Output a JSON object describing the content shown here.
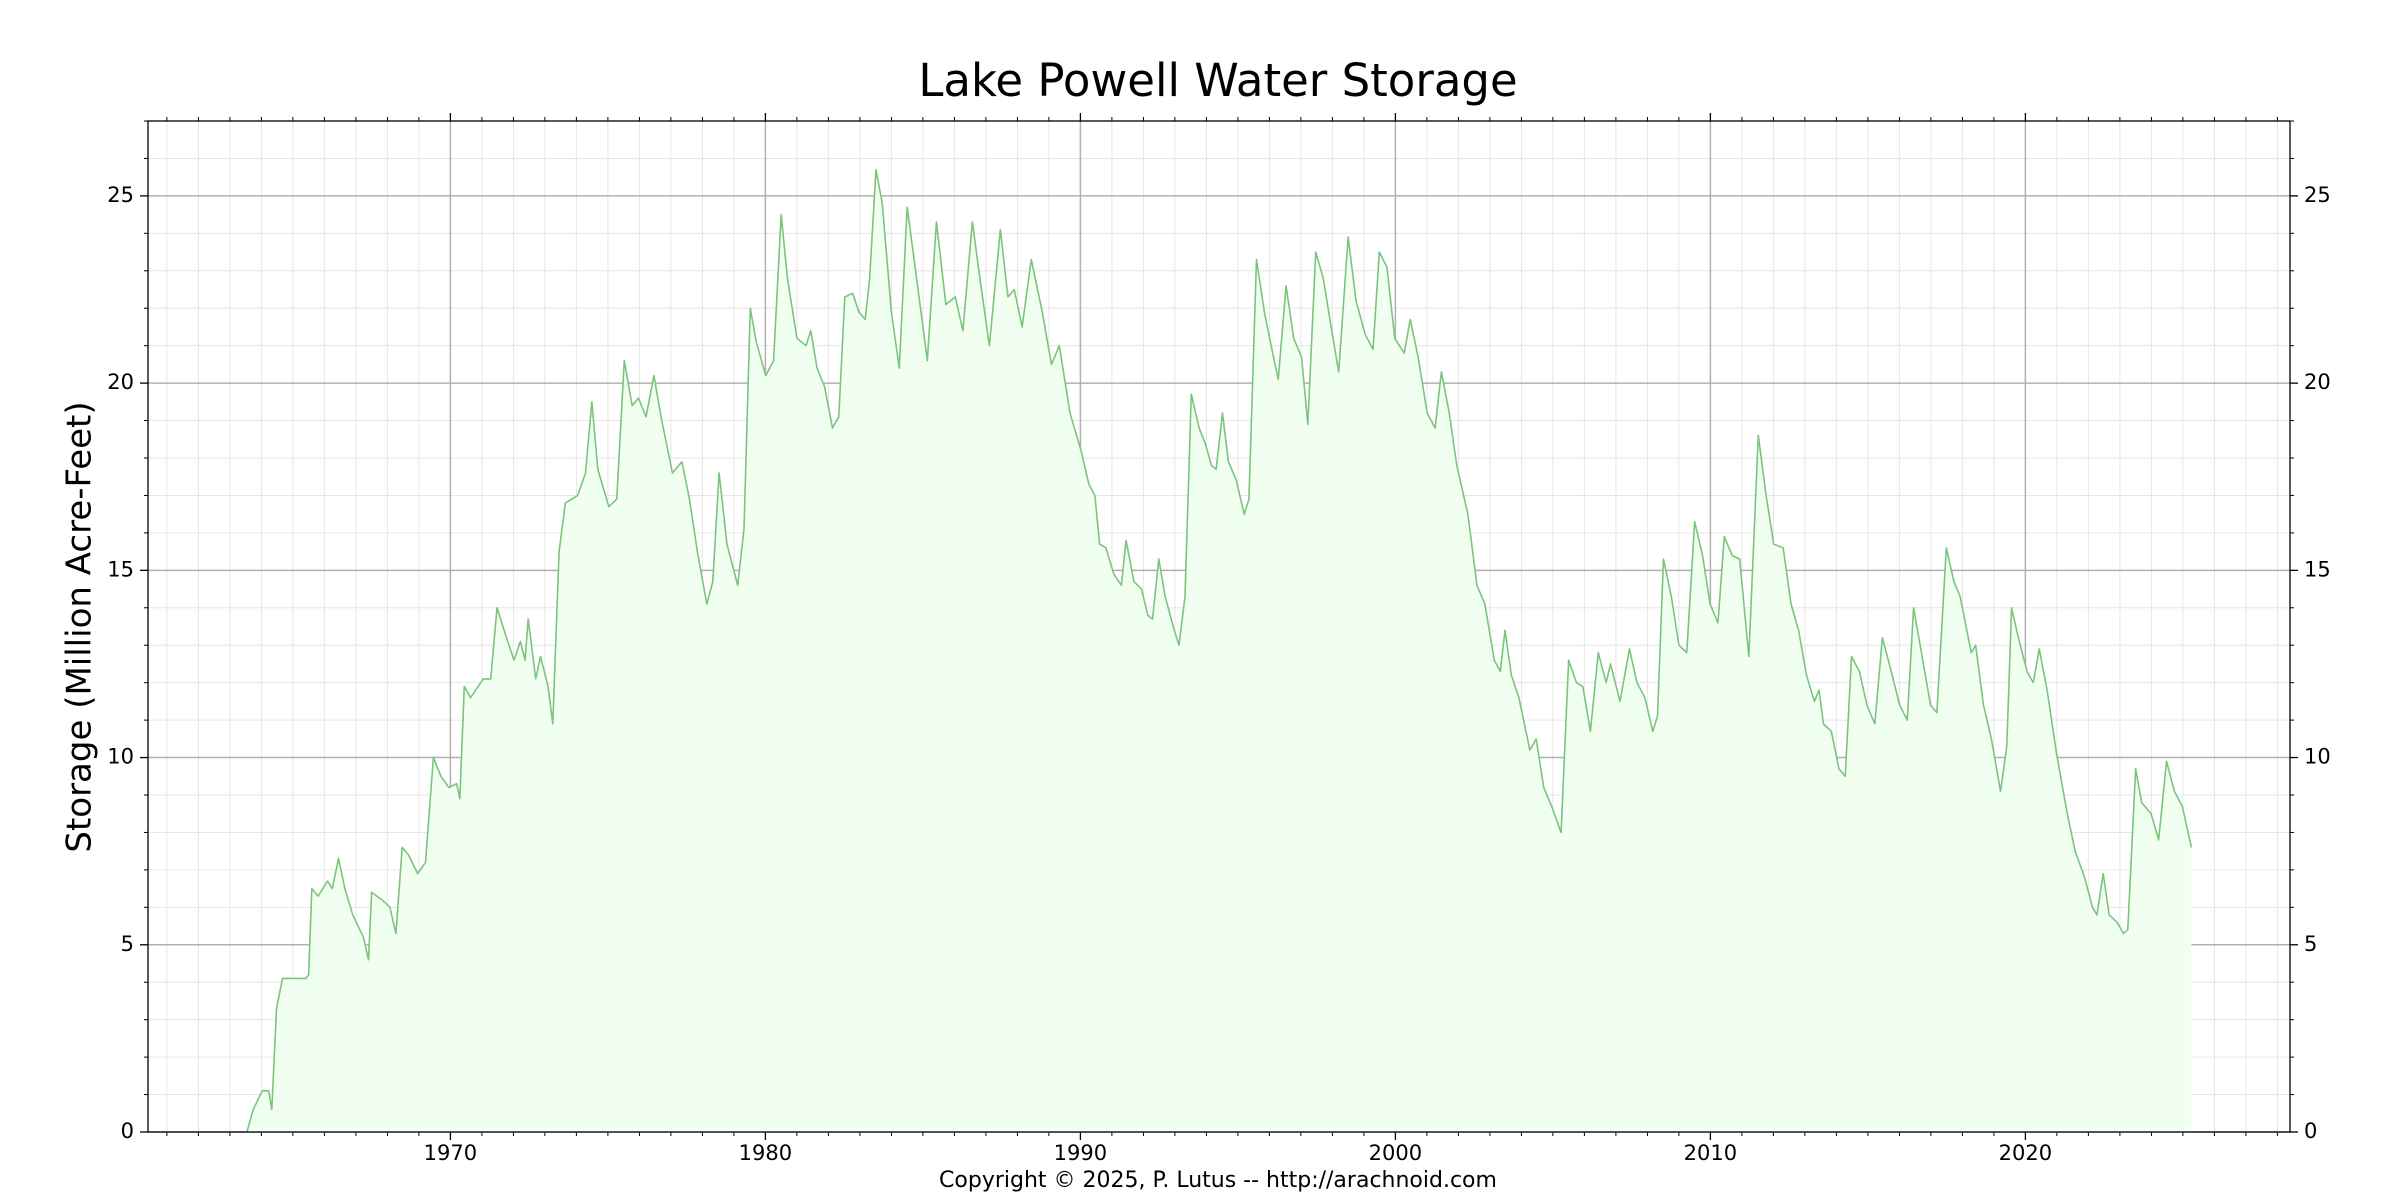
{
  "chart_data": {
    "type": "line",
    "title": "Lake Powell Water Storage",
    "ylabel": "Storage (Million Acre-Feet)",
    "annotation": "Copyright © 2025, P. Lutus -- http://arachnoid.com",
    "color": "#7cc47c",
    "fill_color": "#f0fff0",
    "fill": true,
    "grid": true,
    "minor_grid": true,
    "right_axis_labels": true,
    "xlim": [
      1960.4,
      2028.4
    ],
    "ylim": [
      0,
      27
    ],
    "xticks": [
      1970,
      1980,
      1990,
      2000,
      2010,
      2020
    ],
    "yticks": [
      0,
      5,
      10,
      15,
      20,
      25
    ],
    "xminorticks": [
      1961,
      1962,
      1963,
      1964,
      1965,
      1966,
      1967,
      1968,
      1969,
      1971,
      1972,
      1973,
      1974,
      1975,
      1976,
      1977,
      1978,
      1979,
      1981,
      1982,
      1983,
      1984,
      1985,
      1986,
      1987,
      1988,
      1989,
      1991,
      1992,
      1993,
      1994,
      1995,
      1996,
      1997,
      1998,
      1999,
      2001,
      2002,
      2003,
      2004,
      2005,
      2006,
      2007,
      2008,
      2009,
      2011,
      2012,
      2013,
      2014,
      2015,
      2016,
      2017,
      2018,
      2019,
      2021,
      2022,
      2023,
      2024,
      2025,
      2026,
      2027,
      2028
    ],
    "yminorticks": [
      1,
      2,
      3,
      4,
      6,
      7,
      8,
      9,
      11,
      12,
      13,
      14,
      16,
      17,
      18,
      19,
      21,
      22,
      23,
      24,
      26,
      27
    ],
    "x": [
      1963.54,
      1963.74,
      1964.03,
      1964.23,
      1964.33,
      1964.48,
      1964.67,
      1965.41,
      1965.5,
      1965.6,
      1965.8,
      1966.1,
      1966.25,
      1966.45,
      1966.65,
      1966.9,
      1967.24,
      1967.4,
      1967.5,
      1967.83,
      1968.08,
      1968.27,
      1968.47,
      1968.67,
      1968.96,
      1969.21,
      1969.46,
      1969.7,
      1969.95,
      1970.2,
      1970.3,
      1970.44,
      1970.64,
      1971.04,
      1971.28,
      1971.48,
      1971.78,
      1972.02,
      1972.22,
      1972.37,
      1972.47,
      1972.71,
      1972.86,
      1973.1,
      1973.25,
      1973.45,
      1973.65,
      1974.04,
      1974.29,
      1974.49,
      1974.68,
      1975.03,
      1975.28,
      1975.52,
      1975.77,
      1975.97,
      1976.21,
      1976.46,
      1976.71,
      1977.05,
      1977.35,
      1977.59,
      1977.84,
      1978.14,
      1978.33,
      1978.53,
      1978.78,
      1979.12,
      1979.32,
      1979.52,
      1979.71,
      1980.01,
      1980.26,
      1980.5,
      1980.7,
      1981.0,
      1981.29,
      1981.44,
      1981.64,
      1981.88,
      1982.13,
      1982.33,
      1982.52,
      1982.77,
      1982.97,
      1983.17,
      1983.31,
      1983.51,
      1983.71,
      1984.0,
      1984.25,
      1984.5,
      1984.69,
      1984.94,
      1985.14,
      1985.43,
      1985.73,
      1986.03,
      1986.27,
      1986.57,
      1986.81,
      1987.11,
      1987.46,
      1987.7,
      1987.9,
      1988.15,
      1988.44,
      1988.79,
      1989.08,
      1989.33,
      1989.67,
      1990.02,
      1990.27,
      1990.46,
      1990.61,
      1990.81,
      1991.06,
      1991.3,
      1991.45,
      1991.7,
      1991.94,
      1992.14,
      1992.29,
      1992.49,
      1992.69,
      1992.98,
      1993.13,
      1993.32,
      1993.52,
      1993.77,
      1993.96,
      1994.16,
      1994.31,
      1994.51,
      1994.7,
      1994.95,
      1995.2,
      1995.35,
      1995.59,
      1995.84,
      1996.08,
      1996.28,
      1996.53,
      1996.77,
      1997.02,
      1997.22,
      1997.47,
      1997.71,
      1997.96,
      1998.2,
      1998.5,
      1998.75,
      1999.04,
      1999.29,
      1999.49,
      1999.73,
      1999.98,
      2000.28,
      2000.47,
      2000.72,
      2001.01,
      2001.26,
      2001.46,
      2001.71,
      2001.95,
      2002.3,
      2002.59,
      2002.84,
      2003.14,
      2003.33,
      2003.48,
      2003.68,
      2003.92,
      2004.27,
      2004.47,
      2004.71,
      2004.96,
      2005.26,
      2005.5,
      2005.75,
      2005.95,
      2006.19,
      2006.44,
      2006.69,
      2006.83,
      2007.13,
      2007.43,
      2007.67,
      2007.92,
      2008.17,
      2008.32,
      2008.51,
      2008.76,
      2009.0,
      2009.25,
      2009.5,
      2009.75,
      2009.99,
      2010.24,
      2010.44,
      2010.69,
      2010.93,
      2011.22,
      2011.52,
      2011.77,
      2012.01,
      2012.31,
      2012.56,
      2012.8,
      2013.05,
      2013.3,
      2013.45,
      2013.59,
      2013.84,
      2014.08,
      2014.28,
      2014.48,
      2014.73,
      2014.97,
      2015.22,
      2015.46,
      2015.71,
      2016.01,
      2016.25,
      2016.45,
      2016.7,
      2016.99,
      2017.19,
      2017.49,
      2017.73,
      2017.93,
      2018.28,
      2018.42,
      2018.67,
      2018.92,
      2019.21,
      2019.41,
      2019.56,
      2019.75,
      2020.05,
      2020.25,
      2020.44,
      2020.69,
      2020.99,
      2021.33,
      2021.58,
      2021.88,
      2022.13,
      2022.27,
      2022.47,
      2022.66,
      2022.91,
      2023.11,
      2023.25,
      2023.5,
      2023.69,
      2023.99,
      2024.23,
      2024.48,
      2024.73,
      2024.98,
      2025.27
    ],
    "values": [
      0,
      0.6,
      1.1,
      1.1,
      0.6,
      3.3,
      4.1,
      4.1,
      4.2,
      6.5,
      6.3,
      6.7,
      6.5,
      7.3,
      6.5,
      5.8,
      5.2,
      4.6,
      6.4,
      6.2,
      6.0,
      5.3,
      7.6,
      7.4,
      6.9,
      7.2,
      10.0,
      9.5,
      9.2,
      9.3,
      8.9,
      11.9,
      11.6,
      12.1,
      12.1,
      14.0,
      13.2,
      12.6,
      13.1,
      12.6,
      13.7,
      12.1,
      12.7,
      11.9,
      10.9,
      15.5,
      16.8,
      17.0,
      17.6,
      19.5,
      17.7,
      16.7,
      16.9,
      20.6,
      19.4,
      19.6,
      19.1,
      20.2,
      19.0,
      17.6,
      17.9,
      16.9,
      15.5,
      14.1,
      14.7,
      17.6,
      15.7,
      14.6,
      16.1,
      22.0,
      21.1,
      20.2,
      20.6,
      24.5,
      22.8,
      21.2,
      21.0,
      21.4,
      20.4,
      19.9,
      18.8,
      19.1,
      22.3,
      22.4,
      21.9,
      21.7,
      22.8,
      25.7,
      24.8,
      21.9,
      20.4,
      24.7,
      23.5,
      21.9,
      20.6,
      24.3,
      22.1,
      22.3,
      21.4,
      24.3,
      22.8,
      21.0,
      24.1,
      22.3,
      22.5,
      21.5,
      23.3,
      21.9,
      20.5,
      21.0,
      19.2,
      18.2,
      17.3,
      17.0,
      15.7,
      15.6,
      14.9,
      14.6,
      15.8,
      14.7,
      14.5,
      13.8,
      13.7,
      15.3,
      14.3,
      13.4,
      13.0,
      14.3,
      19.7,
      18.8,
      18.4,
      17.8,
      17.7,
      19.2,
      17.9,
      17.4,
      16.5,
      16.9,
      23.3,
      21.9,
      20.9,
      20.1,
      22.6,
      21.2,
      20.7,
      18.9,
      23.5,
      22.8,
      21.5,
      20.3,
      23.9,
      22.2,
      21.3,
      20.9,
      23.5,
      23.1,
      21.2,
      20.8,
      21.7,
      20.7,
      19.2,
      18.8,
      20.3,
      19.2,
      17.8,
      16.5,
      14.6,
      14.1,
      12.6,
      12.3,
      13.4,
      12.2,
      11.6,
      10.2,
      10.5,
      9.2,
      8.7,
      8.0,
      12.6,
      12.0,
      11.9,
      10.7,
      12.8,
      12.0,
      12.5,
      11.5,
      12.9,
      12.0,
      11.6,
      10.7,
      11.1,
      15.3,
      14.3,
      13.0,
      12.8,
      16.3,
      15.4,
      14.1,
      13.6,
      15.9,
      15.4,
      15.3,
      12.7,
      18.6,
      17.0,
      15.7,
      15.6,
      14.1,
      13.4,
      12.2,
      11.5,
      11.8,
      10.9,
      10.7,
      9.7,
      9.5,
      12.7,
      12.3,
      11.4,
      10.9,
      13.2,
      12.4,
      11.4,
      11.0,
      14.0,
      12.8,
      11.4,
      11.2,
      15.6,
      14.7,
      14.3,
      12.8,
      13.0,
      11.4,
      10.5,
      9.1,
      10.3,
      14.0,
      13.3,
      12.3,
      12.0,
      12.9,
      11.8,
      10.1,
      8.5,
      7.5,
      6.8,
      6.0,
      5.8,
      6.9,
      5.8,
      5.6,
      5.3,
      5.4,
      9.7,
      8.8,
      8.5,
      7.8,
      9.9,
      9.1,
      8.7,
      7.6
    ]
  }
}
